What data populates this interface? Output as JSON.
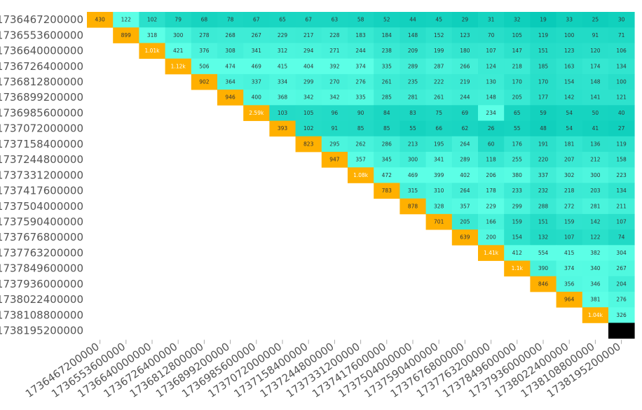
{
  "chart_data": {
    "type": "heatmap",
    "title": "",
    "xlabel": "",
    "ylabel": "",
    "rows": [
      "1736467200000",
      "1736553600000",
      "1736640000000",
      "1736726400000",
      "1736812800000",
      "1736899200000",
      "1736985600000",
      "1737072000000",
      "1737158400000",
      "1737244800000",
      "1737331200000",
      "1737417600000",
      "1737504000000",
      "1737590400000",
      "1737676800000",
      "1737763200000",
      "1737849600000",
      "1737936000000",
      "1738022400000",
      "1738108800000",
      "1738195200000"
    ],
    "columns": [
      "1736467200000",
      "1736553600000",
      "1736640000000",
      "1736726400000",
      "1736812800000",
      "1736899200000",
      "1736985600000",
      "1737072000000",
      "1737158400000",
      "1737244800000",
      "1737331200000",
      "1737417600000",
      "1737504000000",
      "1737590400000",
      "1737676800000",
      "1737763200000",
      "1737849600000",
      "1737936000000",
      "1738022400000",
      "1738108800000",
      "1738195200000"
    ],
    "values": [
      [
        "430",
        "122",
        "102",
        "79",
        "68",
        "78",
        "67",
        "65",
        "67",
        "63",
        "58",
        "52",
        "44",
        "45",
        "29",
        "31",
        "32",
        "19",
        "33",
        "25",
        "30"
      ],
      [
        null,
        "899",
        "318",
        "300",
        "278",
        "268",
        "267",
        "229",
        "217",
        "228",
        "183",
        "184",
        "148",
        "152",
        "123",
        "70",
        "105",
        "119",
        "100",
        "91",
        "71"
      ],
      [
        null,
        null,
        "1.01k",
        "421",
        "376",
        "308",
        "341",
        "312",
        "294",
        "271",
        "244",
        "238",
        "209",
        "199",
        "180",
        "107",
        "147",
        "151",
        "123",
        "120",
        "106"
      ],
      [
        null,
        null,
        null,
        "1.12k",
        "506",
        "474",
        "469",
        "415",
        "404",
        "392",
        "374",
        "335",
        "289",
        "287",
        "266",
        "124",
        "218",
        "185",
        "163",
        "174",
        "134"
      ],
      [
        null,
        null,
        null,
        null,
        "902",
        "364",
        "337",
        "334",
        "299",
        "270",
        "276",
        "261",
        "235",
        "222",
        "219",
        "130",
        "170",
        "170",
        "154",
        "148",
        "100"
      ],
      [
        null,
        null,
        null,
        null,
        null,
        "946",
        "400",
        "368",
        "342",
        "342",
        "335",
        "285",
        "281",
        "261",
        "244",
        "148",
        "205",
        "177",
        "142",
        "141",
        "121"
      ],
      [
        null,
        null,
        null,
        null,
        null,
        null,
        "2.59k",
        "103",
        "105",
        "96",
        "90",
        "84",
        "83",
        "75",
        "69",
        "234",
        "65",
        "59",
        "54",
        "50",
        "40"
      ],
      [
        null,
        null,
        null,
        null,
        null,
        null,
        null,
        "393",
        "102",
        "91",
        "85",
        "85",
        "55",
        "66",
        "62",
        "26",
        "55",
        "48",
        "54",
        "41",
        "27"
      ],
      [
        null,
        null,
        null,
        null,
        null,
        null,
        null,
        null,
        "823",
        "295",
        "262",
        "286",
        "213",
        "195",
        "264",
        "60",
        "176",
        "191",
        "181",
        "136",
        "119"
      ],
      [
        null,
        null,
        null,
        null,
        null,
        null,
        null,
        null,
        null,
        "947",
        "357",
        "345",
        "300",
        "341",
        "289",
        "118",
        "255",
        "220",
        "207",
        "212",
        "158"
      ],
      [
        null,
        null,
        null,
        null,
        null,
        null,
        null,
        null,
        null,
        null,
        "1.08k",
        "472",
        "469",
        "399",
        "402",
        "206",
        "380",
        "337",
        "302",
        "300",
        "223"
      ],
      [
        null,
        null,
        null,
        null,
        null,
        null,
        null,
        null,
        null,
        null,
        null,
        "783",
        "315",
        "310",
        "264",
        "178",
        "233",
        "232",
        "218",
        "203",
        "134"
      ],
      [
        null,
        null,
        null,
        null,
        null,
        null,
        null,
        null,
        null,
        null,
        null,
        null,
        "878",
        "328",
        "357",
        "229",
        "299",
        "288",
        "272",
        "281",
        "211"
      ],
      [
        null,
        null,
        null,
        null,
        null,
        null,
        null,
        null,
        null,
        null,
        null,
        null,
        null,
        "701",
        "205",
        "166",
        "159",
        "151",
        "159",
        "142",
        "107"
      ],
      [
        null,
        null,
        null,
        null,
        null,
        null,
        null,
        null,
        null,
        null,
        null,
        null,
        null,
        null,
        "639",
        "200",
        "154",
        "132",
        "107",
        "122",
        "74"
      ],
      [
        null,
        null,
        null,
        null,
        null,
        null,
        null,
        null,
        null,
        null,
        null,
        null,
        null,
        null,
        null,
        "1.41k",
        "412",
        "554",
        "415",
        "382",
        "304"
      ],
      [
        null,
        null,
        null,
        null,
        null,
        null,
        null,
        null,
        null,
        null,
        null,
        null,
        null,
        null,
        null,
        null,
        "1.1k",
        "390",
        "374",
        "340",
        "267"
      ],
      [
        null,
        null,
        null,
        null,
        null,
        null,
        null,
        null,
        null,
        null,
        null,
        null,
        null,
        null,
        null,
        null,
        null,
        "846",
        "356",
        "346",
        "204"
      ],
      [
        null,
        null,
        null,
        null,
        null,
        null,
        null,
        null,
        null,
        null,
        null,
        null,
        null,
        null,
        null,
        null,
        null,
        null,
        "964",
        "381",
        "276"
      ],
      [
        null,
        null,
        null,
        null,
        null,
        null,
        null,
        null,
        null,
        null,
        null,
        null,
        null,
        null,
        null,
        null,
        null,
        null,
        null,
        "1.04k",
        "326"
      ],
      [
        null,
        null,
        null,
        null,
        null,
        null,
        null,
        null,
        null,
        null,
        null,
        null,
        null,
        null,
        null,
        null,
        null,
        null,
        null,
        null,
        ""
      ]
    ],
    "colors": {
      "diagonal": "#FFB000",
      "diagonal_text": "#333333",
      "diagonal_text_strong": "#ffffff",
      "last_cell": "#000000",
      "light": "#5CFFE6",
      "dark": "#00C6B4",
      "text": "#333333",
      "axis_text": "#555555"
    },
    "grid": false,
    "legend": "none"
  }
}
